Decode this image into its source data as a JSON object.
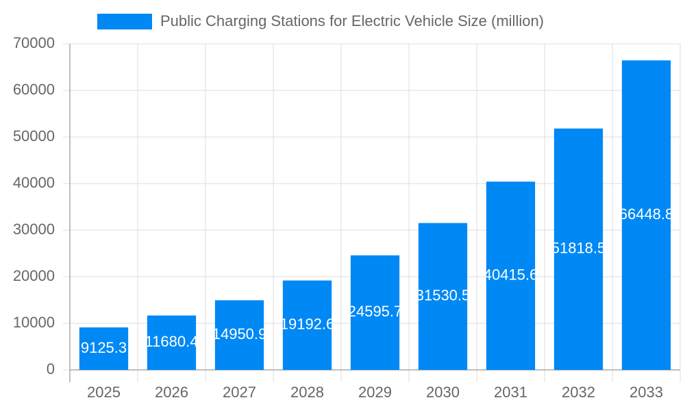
{
  "chart_data": {
    "type": "bar",
    "categories": [
      "2025",
      "2026",
      "2027",
      "2028",
      "2029",
      "2030",
      "2031",
      "2032",
      "2033"
    ],
    "series": [
      {
        "name": "Public Charging Stations for Electric Vehicle Size (million)",
        "color": "#0088f5",
        "values": [
          9125.3,
          11680.4,
          14950.9,
          19192.6,
          24595.7,
          31530.5,
          40415.6,
          51818.5,
          66448.8
        ]
      }
    ],
    "ylim": [
      0,
      70000
    ],
    "yticks": [
      0,
      10000,
      20000,
      30000,
      40000,
      50000,
      60000,
      70000
    ],
    "grid": true,
    "legend": "top",
    "data_labels": true
  }
}
